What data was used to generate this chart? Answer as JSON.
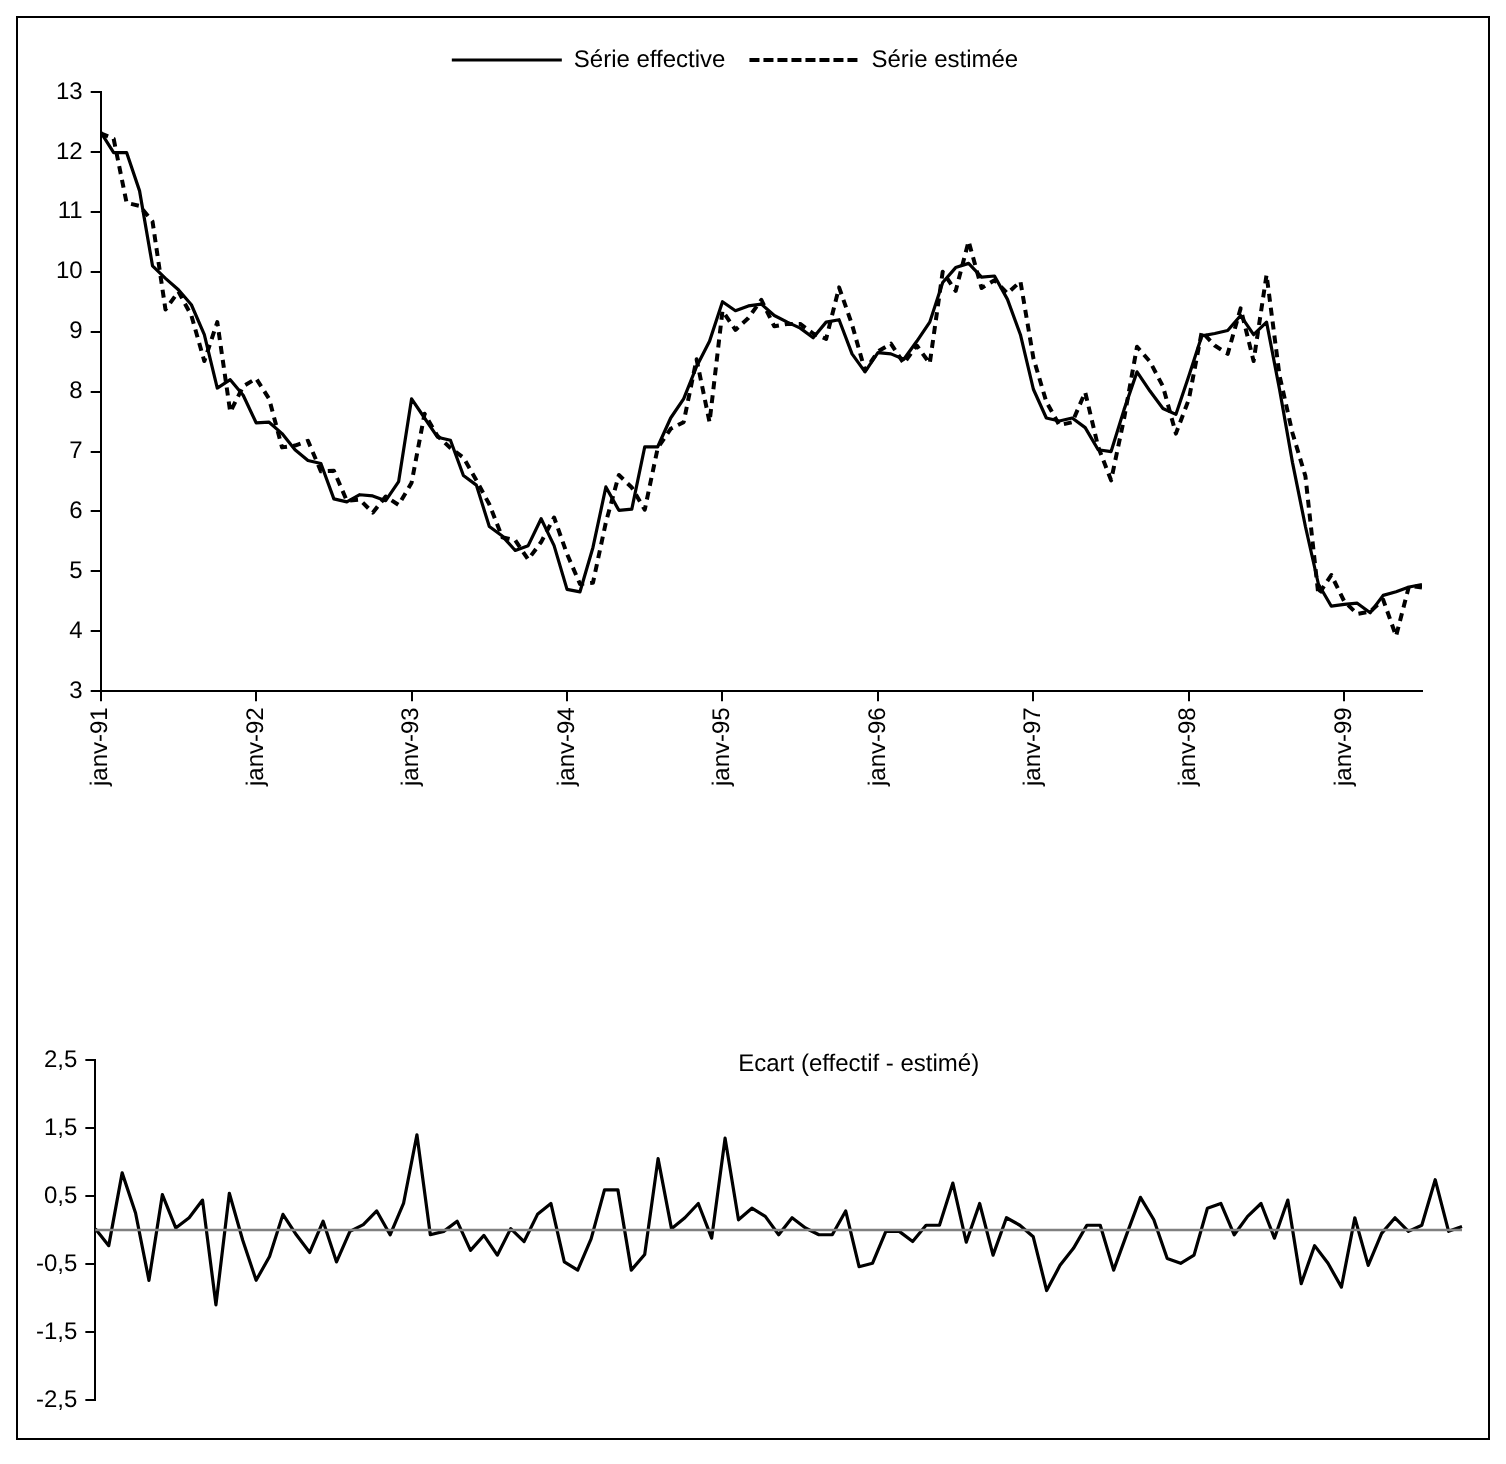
{
  "chart_data": [
    {
      "type": "line",
      "legend": "top",
      "grid": false,
      "marker": "none",
      "ylim": [
        3,
        13
      ],
      "yticks": [
        3,
        4,
        5,
        6,
        7,
        8,
        9,
        10,
        11,
        12,
        13
      ],
      "xlim": [
        "1991-01",
        "1999-07"
      ],
      "xticks": [
        {
          "value": "1991-01",
          "label": "janv-91"
        },
        {
          "value": "1992-01",
          "label": "janv-92"
        },
        {
          "value": "1993-01",
          "label": "janv-93"
        },
        {
          "value": "1994-01",
          "label": "janv-94"
        },
        {
          "value": "1995-01",
          "label": "janv-95"
        },
        {
          "value": "1996-01",
          "label": "janv-96"
        },
        {
          "value": "1997-01",
          "label": "janv-97"
        },
        {
          "value": "1998-01",
          "label": "janv-98"
        },
        {
          "value": "1999-01",
          "label": "janv-99"
        }
      ],
      "x": [
        "1991-01",
        "1991-02",
        "1991-03",
        "1991-04",
        "1991-05",
        "1991-06",
        "1991-07",
        "1991-08",
        "1991-09",
        "1991-10",
        "1991-11",
        "1991-12",
        "1992-01",
        "1992-02",
        "1992-03",
        "1992-04",
        "1992-05",
        "1992-06",
        "1992-07",
        "1992-08",
        "1992-09",
        "1992-10",
        "1992-11",
        "1992-12",
        "1993-01",
        "1993-02",
        "1993-03",
        "1993-04",
        "1993-05",
        "1993-06",
        "1993-07",
        "1993-08",
        "1993-09",
        "1993-10",
        "1993-11",
        "1993-12",
        "1994-01",
        "1994-02",
        "1994-03",
        "1994-04",
        "1994-05",
        "1994-06",
        "1994-07",
        "1994-08",
        "1994-09",
        "1994-10",
        "1994-11",
        "1994-12",
        "1995-01",
        "1995-02",
        "1995-03",
        "1995-04",
        "1995-05",
        "1995-06",
        "1995-07",
        "1995-08",
        "1995-09",
        "1995-10",
        "1995-11",
        "1995-12",
        "1996-01",
        "1996-02",
        "1996-03",
        "1996-04",
        "1996-05",
        "1996-06",
        "1996-07",
        "1996-08",
        "1996-09",
        "1996-10",
        "1996-11",
        "1996-12",
        "1997-01",
        "1997-02",
        "1997-03",
        "1997-04",
        "1997-05",
        "1997-06",
        "1997-07",
        "1997-08",
        "1997-09",
        "1997-10",
        "1997-11",
        "1997-12",
        "1998-01",
        "1998-02",
        "1998-03",
        "1998-04",
        "1998-05",
        "1998-06",
        "1998-07",
        "1998-08",
        "1998-09",
        "1998-10",
        "1998-11",
        "1998-12",
        "1999-01",
        "1999-02",
        "1999-03",
        "1999-04",
        "1999-05",
        "1999-06",
        "1999-07"
      ],
      "series": [
        {
          "name": "Série effective",
          "color": "#000000",
          "line_style": "solid",
          "values": [
            12.33,
            11.99,
            11.99,
            11.35,
            10.1,
            9.89,
            9.7,
            9.45,
            8.95,
            8.06,
            8.2,
            7.94,
            7.48,
            7.49,
            7.3,
            7.03,
            6.85,
            6.8,
            6.21,
            6.16,
            6.28,
            6.26,
            6.18,
            6.5,
            7.88,
            7.56,
            7.24,
            7.19,
            6.6,
            6.44,
            5.75,
            5.59,
            5.35,
            5.43,
            5.88,
            5.43,
            4.7,
            4.66,
            5.4,
            6.41,
            6.02,
            6.04,
            7.08,
            7.08,
            7.56,
            7.88,
            8.42,
            8.84,
            9.5,
            9.35,
            9.43,
            9.46,
            9.27,
            9.16,
            9.06,
            8.9,
            9.16,
            9.2,
            8.63,
            8.33,
            8.65,
            8.63,
            8.54,
            8.84,
            9.16,
            9.82,
            10.07,
            10.14,
            9.91,
            9.93,
            9.54,
            8.95,
            8.04,
            7.56,
            7.51,
            7.56,
            7.4,
            7.03,
            7.0,
            7.7,
            8.33,
            8.01,
            7.72,
            7.62,
            8.26,
            8.93,
            8.97,
            9.02,
            9.27,
            8.95,
            9.16,
            8.04,
            6.82,
            5.75,
            4.79,
            4.42,
            4.45,
            4.47,
            4.31,
            4.6,
            4.66,
            4.74,
            4.78
          ]
        },
        {
          "name": "Série estimée",
          "color": "#000000",
          "line_style": "dashed",
          "values": [
            12.31,
            12.22,
            11.15,
            11.1,
            10.84,
            9.37,
            9.67,
            9.27,
            8.51,
            9.16,
            7.66,
            8.09,
            8.22,
            7.88,
            7.07,
            7.1,
            7.18,
            6.67,
            6.68,
            6.18,
            6.2,
            5.98,
            6.25,
            6.11,
            6.48,
            7.63,
            7.26,
            7.06,
            6.9,
            6.52,
            6.12,
            5.57,
            5.52,
            5.2,
            5.49,
            5.9,
            5.29,
            4.79,
            4.81,
            5.82,
            6.61,
            6.4,
            6.03,
            7.06,
            7.38,
            7.49,
            8.54,
            7.49,
            9.35,
            9.03,
            9.23,
            9.53,
            9.09,
            9.13,
            9.13,
            8.97,
            8.88,
            9.74,
            9.12,
            8.35,
            8.67,
            8.8,
            8.47,
            8.77,
            8.47,
            10.0,
            9.68,
            10.51,
            9.73,
            9.86,
            9.64,
            9.84,
            8.56,
            7.83,
            7.44,
            7.49,
            7.99,
            7.08,
            6.52,
            7.55,
            8.75,
            8.5,
            8.09,
            7.3,
            7.87,
            9.0,
            8.77,
            8.63,
            9.39,
            8.51,
            9.95,
            8.27,
            7.31,
            6.59,
            4.61,
            4.94,
            4.5,
            4.29,
            4.33,
            4.53,
            3.92,
            4.76,
            4.73
          ]
        }
      ]
    },
    {
      "type": "line",
      "title": "Ecart (effectif - estimé)",
      "grid": false,
      "marker": "none",
      "tick_labels": "y",
      "ylim": [
        -2.5,
        2.5
      ],
      "yticks": [
        {
          "value": -2.5,
          "label": "-2,5"
        },
        {
          "value": -1.5,
          "label": "-1,5"
        },
        {
          "value": -0.5,
          "label": "-0,5"
        },
        {
          "value": 0.5,
          "label": "0,5"
        },
        {
          "value": 1.5,
          "label": "1,5"
        },
        {
          "value": 2.5,
          "label": "2,5"
        }
      ],
      "ref_lines": [
        {
          "axis": "y",
          "value": 0,
          "color": "#808080"
        }
      ],
      "categories": [
        null,
        null,
        null,
        null,
        null,
        null,
        null,
        null,
        null,
        null,
        null,
        null,
        null,
        null,
        null,
        null,
        null,
        null,
        null,
        null,
        null,
        null,
        null,
        null,
        null,
        null,
        null,
        null,
        null,
        null,
        null,
        null,
        null,
        null,
        null,
        null,
        null,
        null,
        null,
        null,
        null,
        null,
        null,
        null,
        null,
        null,
        null,
        null,
        null,
        null,
        null,
        null,
        null,
        null,
        null,
        null,
        null,
        null,
        null,
        null,
        null,
        null,
        null,
        null,
        null,
        null,
        null,
        null,
        null,
        null,
        null,
        null,
        null,
        null,
        null,
        null,
        null,
        null,
        null,
        null,
        null,
        null,
        null,
        null,
        null,
        null,
        null,
        null,
        null,
        null,
        null,
        null,
        null,
        null,
        null,
        null,
        null,
        null,
        null,
        null,
        null,
        null,
        null
      ],
      "series": [
        {
          "color": "#000000",
          "values": [
            0.02,
            -0.23,
            0.84,
            0.25,
            -0.74,
            0.52,
            0.03,
            0.18,
            0.44,
            -1.1,
            0.54,
            -0.15,
            -0.74,
            -0.39,
            0.23,
            -0.07,
            -0.33,
            0.13,
            -0.47,
            -0.02,
            0.08,
            0.28,
            -0.07,
            0.39,
            1.4,
            -0.07,
            -0.02,
            0.13,
            -0.3,
            -0.08,
            -0.37,
            0.02,
            -0.17,
            0.23,
            0.39,
            -0.47,
            -0.59,
            -0.13,
            0.59,
            0.59,
            -0.59,
            -0.36,
            1.05,
            0.02,
            0.18,
            0.39,
            -0.12,
            1.35,
            0.15,
            0.32,
            0.2,
            -0.07,
            0.18,
            0.03,
            -0.07,
            -0.07,
            0.28,
            -0.54,
            -0.49,
            -0.02,
            -0.02,
            -0.17,
            0.07,
            0.07,
            0.69,
            -0.18,
            0.39,
            -0.37,
            0.18,
            0.07,
            -0.1,
            -0.89,
            -0.52,
            -0.27,
            0.07,
            0.07,
            -0.59,
            -0.05,
            0.48,
            0.15,
            -0.42,
            -0.49,
            -0.37,
            0.32,
            0.39,
            -0.07,
            0.2,
            0.39,
            -0.12,
            0.44,
            -0.79,
            -0.23,
            -0.49,
            -0.84,
            0.18,
            -0.52,
            -0.05,
            0.18,
            -0.02,
            0.07,
            0.74,
            -0.02,
            0.05
          ]
        }
      ]
    }
  ]
}
